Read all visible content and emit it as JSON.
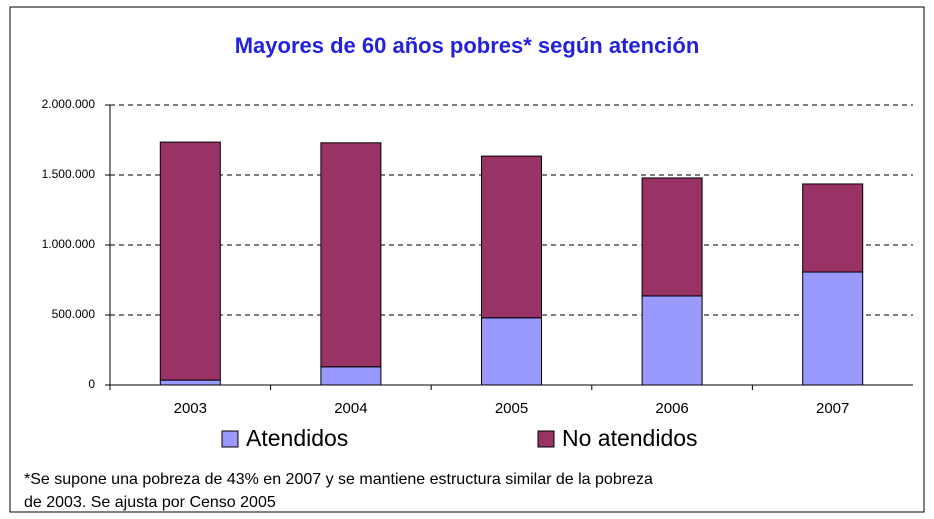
{
  "chart_data": {
    "type": "stacked_bar",
    "title": "Mayores de 60 años pobres* según atención",
    "categories": [
      "2003",
      "2004",
      "2005",
      "2006",
      "2007"
    ],
    "series": [
      {
        "name": "Atendidos",
        "color": "#9999ff",
        "values": [
          35000,
          130000,
          480000,
          636000,
          807000
        ]
      },
      {
        "name": "No atendidos",
        "color": "#993366",
        "values": [
          1700000,
          1600000,
          1155000,
          843000,
          629000
        ]
      }
    ],
    "ylim": [
      0,
      2000000
    ],
    "yticks": [
      0,
      {
        "value": 500000,
        "label": "500.000"
      },
      {
        "value": 1000000,
        "label": "1.000.000"
      },
      {
        "value": 1500000,
        "label": "1.500.000"
      },
      {
        "value": 2000000,
        "label": "2.000.000"
      }
    ],
    "grid": true,
    "legend": "bottom",
    "note": [
      "*Se supone una pobreza de 43% en 2007 y se mantiene estructura similar de la pobreza",
      "de 2003. Se ajusta por Censo 2005"
    ]
  }
}
